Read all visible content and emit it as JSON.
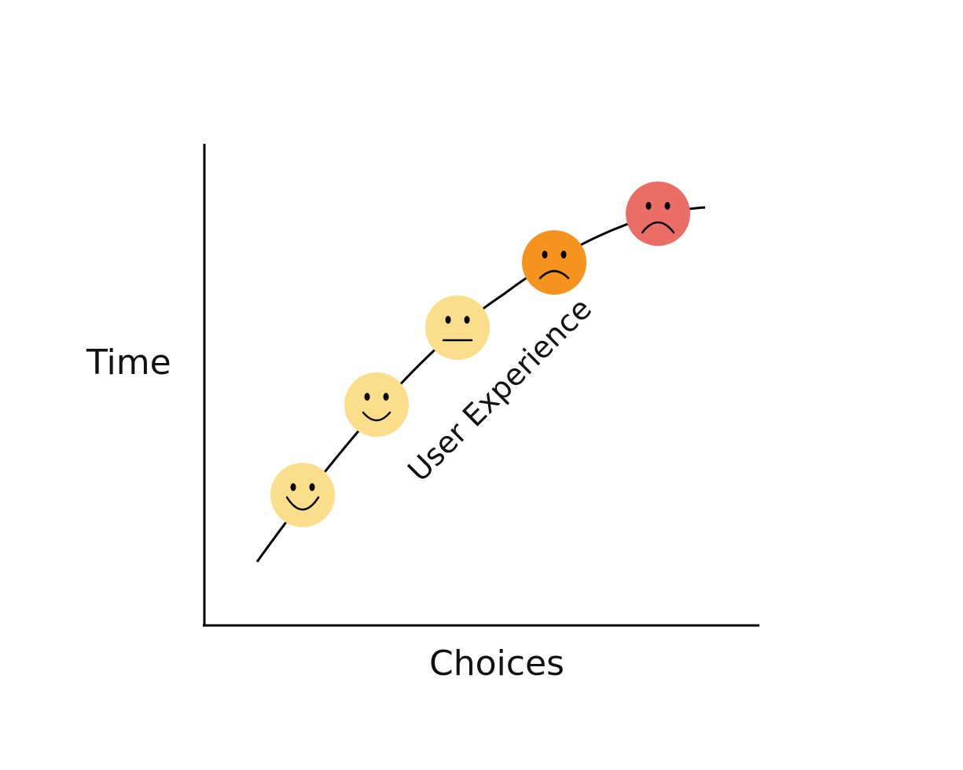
{
  "axes": {
    "y_label": "Time",
    "x_label": "Choices"
  },
  "curve": {
    "label": "User Experience"
  },
  "faces": [
    {
      "mood": "very-happy",
      "icon": "very-happy-face-icon",
      "color": "#FBDE8C"
    },
    {
      "mood": "happy",
      "icon": "happy-face-icon",
      "color": "#FBDE8C"
    },
    {
      "mood": "neutral",
      "icon": "neutral-face-icon",
      "color": "#FBDE8C"
    },
    {
      "mood": "sad",
      "icon": "sad-face-icon",
      "color": "#F4931E"
    },
    {
      "mood": "very-sad",
      "icon": "very-sad-face-icon",
      "color": "#EB6E66"
    }
  ],
  "colors": {
    "line": "#000000",
    "background": "#ffffff"
  }
}
